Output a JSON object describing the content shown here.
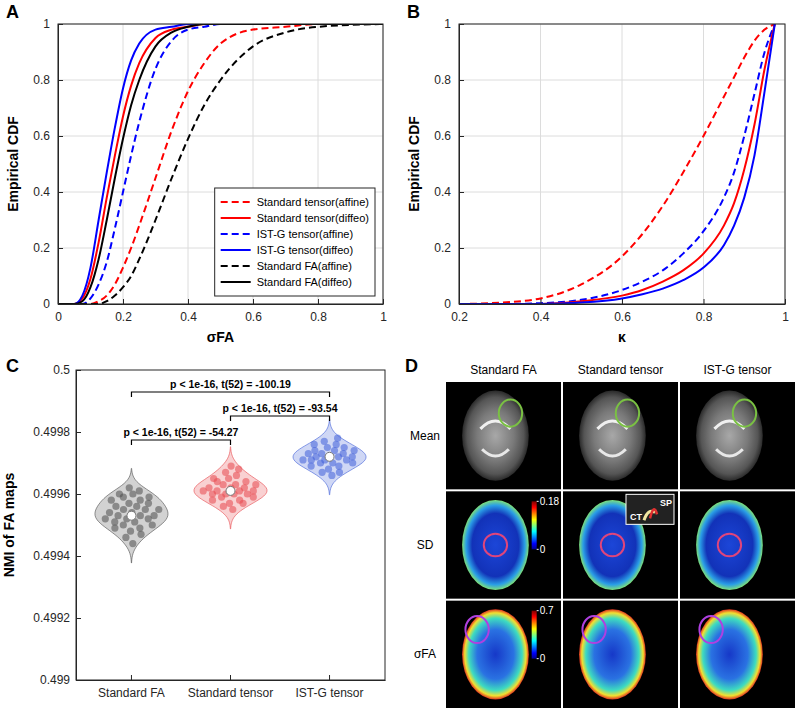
{
  "chart_data": [
    {
      "panel": "A",
      "type": "line",
      "x_label": "σFA",
      "y_label": "Empirical CDF",
      "xlim": [
        0,
        1
      ],
      "ylim": [
        0,
        1
      ],
      "xticks": [
        0,
        0.2,
        0.4,
        0.6,
        0.8,
        1
      ],
      "yticks": [
        0,
        0.2,
        0.4,
        0.6,
        0.8,
        1
      ],
      "grid": true,
      "legend": "lower right",
      "x": [
        0,
        0.05,
        0.075,
        0.1,
        0.125,
        0.15,
        0.175,
        0.2,
        0.225,
        0.25,
        0.3,
        0.35,
        0.4,
        0.45,
        0.5,
        0.6,
        0.7,
        0.8,
        1
      ],
      "series": [
        {
          "name": "Standard tensor(affine)",
          "color": "#ff0000",
          "line_style": "dashed",
          "values": [
            0,
            0,
            0,
            0,
            0.01,
            0.03,
            0.07,
            0.13,
            0.2,
            0.28,
            0.45,
            0.62,
            0.76,
            0.86,
            0.93,
            0.98,
            0.99,
            1,
            1
          ]
        },
        {
          "name": "Standard tensor(diffeo)",
          "color": "#ff0000",
          "line_style": "solid",
          "values": [
            0,
            0,
            0.02,
            0.09,
            0.22,
            0.38,
            0.53,
            0.67,
            0.78,
            0.86,
            0.95,
            0.98,
            0.99,
            1,
            1,
            1,
            1,
            1,
            1
          ]
        },
        {
          "name": "IST-G tensor(affine)",
          "color": "#0000ff",
          "line_style": "dashed",
          "values": [
            0,
            0,
            0,
            0.02,
            0.07,
            0.15,
            0.27,
            0.4,
            0.53,
            0.65,
            0.84,
            0.94,
            0.98,
            0.99,
            1,
            1,
            1,
            1,
            1
          ]
        },
        {
          "name": "IST-G tensor(diffeo)",
          "color": "#0000ff",
          "line_style": "solid",
          "values": [
            0,
            0,
            0.03,
            0.13,
            0.3,
            0.47,
            0.63,
            0.77,
            0.87,
            0.93,
            0.98,
            0.99,
            1,
            1,
            1,
            1,
            1,
            1,
            1
          ]
        },
        {
          "name": "Standard FA(affine)",
          "color": "#000000",
          "line_style": "dashed",
          "values": [
            0,
            0,
            0,
            0,
            0,
            0.01,
            0.03,
            0.06,
            0.1,
            0.16,
            0.3,
            0.45,
            0.59,
            0.71,
            0.8,
            0.92,
            0.97,
            0.99,
            1
          ]
        },
        {
          "name": "Standard FA(diffeo)",
          "color": "#000000",
          "line_style": "solid",
          "values": [
            0,
            0,
            0.01,
            0.06,
            0.16,
            0.3,
            0.45,
            0.59,
            0.71,
            0.8,
            0.92,
            0.97,
            0.99,
            1,
            1,
            1,
            1,
            1,
            1
          ]
        }
      ]
    },
    {
      "panel": "B",
      "type": "line",
      "x_label": "κ",
      "y_label": "Empirical CDF",
      "xlim": [
        0.2,
        1
      ],
      "ylim": [
        0,
        1
      ],
      "xticks": [
        0.2,
        0.4,
        0.6,
        0.8,
        1
      ],
      "yticks": [
        0,
        0.2,
        0.4,
        0.6,
        0.8,
        1
      ],
      "grid": true,
      "x": [
        0.2,
        0.3,
        0.4,
        0.5,
        0.6,
        0.65,
        0.7,
        0.75,
        0.8,
        0.85,
        0.875,
        0.9,
        0.925,
        0.95,
        0.975
      ],
      "series": [
        {
          "color": "#ff0000",
          "line_style": "dashed",
          "values": [
            0,
            0.005,
            0.02,
            0.07,
            0.17,
            0.25,
            0.35,
            0.47,
            0.6,
            0.74,
            0.81,
            0.88,
            0.94,
            0.98,
            1
          ]
        },
        {
          "color": "#0000ff",
          "line_style": "dashed",
          "values": [
            0,
            0,
            0.003,
            0.015,
            0.05,
            0.08,
            0.12,
            0.18,
            0.26,
            0.38,
            0.47,
            0.6,
            0.75,
            0.9,
            1
          ]
        },
        {
          "color": "#ff0000",
          "line_style": "solid",
          "values": [
            0,
            0,
            0,
            0.01,
            0.03,
            0.05,
            0.08,
            0.12,
            0.18,
            0.28,
            0.36,
            0.48,
            0.64,
            0.84,
            1
          ]
        },
        {
          "color": "#0000ff",
          "line_style": "solid",
          "values": [
            0,
            0,
            0,
            0.005,
            0.02,
            0.035,
            0.055,
            0.085,
            0.13,
            0.21,
            0.28,
            0.38,
            0.53,
            0.76,
            1
          ]
        }
      ]
    },
    {
      "panel": "C",
      "type": "violin",
      "y_label": "NMI of FA maps",
      "categories": [
        "Standard FA",
        "Standard tensor",
        "IST-G tensor"
      ],
      "colors": [
        "#4d4d4d",
        "#e8474c",
        "#3f5fd8"
      ],
      "ylim": [
        0.499,
        0.5
      ],
      "yticks": [
        0.499,
        0.4992,
        0.4994,
        0.4996,
        0.4998,
        0.5
      ],
      "values": [
        [
          0.49944,
          0.49946,
          0.49947,
          0.49948,
          0.49949,
          0.49949,
          0.4995,
          0.4995,
          0.49951,
          0.49951,
          0.49952,
          0.49952,
          0.49952,
          0.49953,
          0.49953,
          0.49953,
          0.49954,
          0.49954,
          0.49955,
          0.49955,
          0.49955,
          0.49956,
          0.49956,
          0.49957,
          0.49957,
          0.49958,
          0.49958,
          0.49959,
          0.49959,
          0.4996,
          0.4996,
          0.49961,
          0.49962
        ],
        [
          0.49955,
          0.49956,
          0.49957,
          0.49957,
          0.49958,
          0.49958,
          0.49959,
          0.49959,
          0.4996,
          0.4996,
          0.4996,
          0.4996,
          0.49961,
          0.49961,
          0.49961,
          0.49961,
          0.49962,
          0.49962,
          0.49962,
          0.49963,
          0.49963,
          0.49963,
          0.49964,
          0.49964,
          0.49965,
          0.49965,
          0.49966,
          0.49967,
          0.49968,
          0.49969
        ],
        [
          0.49966,
          0.49967,
          0.49967,
          0.49968,
          0.49969,
          0.49969,
          0.4997,
          0.4997,
          0.4997,
          0.49971,
          0.49971,
          0.49971,
          0.49971,
          0.49972,
          0.49972,
          0.49972,
          0.49972,
          0.49973,
          0.49973,
          0.49973,
          0.49974,
          0.49974,
          0.49974,
          0.49975,
          0.49975,
          0.49976,
          0.49976,
          0.49977,
          0.49978
        ]
      ],
      "medians": [
        0.49953,
        0.49961,
        0.49972
      ],
      "annotations": [
        {
          "groups": [
            "Standard FA",
            "IST-G tensor"
          ],
          "text": "p < 1e-16, t(52) = -100.19"
        },
        {
          "groups": [
            "Standard tensor",
            "IST-G tensor"
          ],
          "text": "p < 1e-16, t(52) = -93.54"
        },
        {
          "groups": [
            "Standard FA",
            "Standard tensor"
          ],
          "text": "p < 1e-16, t(52) = -54.27"
        }
      ]
    },
    {
      "panel": "D",
      "type": "image_grid",
      "columns": [
        "Standard FA",
        "Standard tensor",
        "IST-G tensor"
      ],
      "rows": [
        "Mean",
        "SD",
        "σFA"
      ],
      "colorbars": [
        {
          "row": "SD",
          "lim": [
            0,
            0.18
          ],
          "ticks": [
            0,
            0.18
          ]
        },
        {
          "row": "σFA",
          "lim": [
            0,
            0.7
          ],
          "ticks": [
            0,
            0.7
          ]
        }
      ],
      "inset_labels": [
        "SP",
        "CT"
      ]
    }
  ]
}
